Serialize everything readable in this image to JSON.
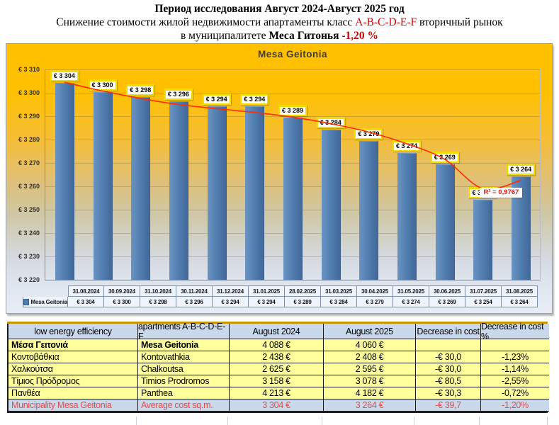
{
  "page_title": {
    "line1": "Период исследования Август 2024-Август 2025 год",
    "line2_prefix": "Снижение стоимости жилой недвижимости апартаменты класс ",
    "line2_class": "A-B-C-D-E-F",
    "line2_suffix": " вторичный рынок",
    "line3_prefix": "в муниципалитете ",
    "line3_municipality": "Меса Гитонья ",
    "line3_change": "-1,20 %"
  },
  "chart_data": {
    "type": "bar",
    "title": "Mesa Geitonia",
    "legend_label": "Mesa Geitonia",
    "categories": [
      "31.08.2024",
      "30.09.2024",
      "31.10.2024",
      "30.11.2024",
      "31.12.2024",
      "31.01.2025",
      "28.02.2025",
      "31.03.2025",
      "30.04.2025",
      "31.05.2025",
      "30.06.2025",
      "31.07.2025",
      "31.08.2025"
    ],
    "values": [
      3304,
      3300,
      3298,
      3296,
      3294,
      3294,
      3289,
      3284,
      3279,
      3274,
      3269,
      3254,
      3264
    ],
    "value_labels": [
      "€ 3 304",
      "€ 3 300",
      "€ 3 298",
      "€ 3 296",
      "€ 3 294",
      "€ 3 294",
      "€ 3 289",
      "€ 3 284",
      "€ 3 279",
      "€ 3 274",
      "€ 3 269",
      "€ 3 254",
      "€ 3 264"
    ],
    "ylim": [
      3220,
      3310
    ],
    "ytick_step": 10,
    "ytick_labels": [
      "€ 3 310",
      "€ 3 300",
      "€ 3 290",
      "€ 3 280",
      "€ 3 270",
      "€ 3 260",
      "€ 3 250",
      "€ 3 240",
      "€ 3 230",
      "€ 3 220"
    ],
    "grid": true,
    "legend_position": "bottom-data-table",
    "trendline": {
      "r2_label": "R² = 0,9767",
      "approx_points": [
        3304.5,
        3300.8,
        3297.6,
        3295.0,
        3293.2,
        3291.6,
        3289.6,
        3286.8,
        3283.2,
        3278.2,
        3271.5,
        3259.0,
        3262.5
      ]
    },
    "colors": {
      "bar": "#4f7cae",
      "trendline": "#ff2b00",
      "bg_top": "#ffc000",
      "bg_bottom": "#e7ecf5",
      "label_border": "#f2dc00"
    }
  },
  "table": {
    "headers": [
      "low energy efficiency",
      "apartments A-B-C-D-E-F",
      "August 2024",
      "August 2025",
      "Decrease in cost",
      "Decrease in cost %"
    ],
    "rows": [
      {
        "cells": [
          "Μέσα Γειτονιά",
          "Mesa Geitonia",
          "4 088 €",
          "4 060 €",
          "",
          ""
        ],
        "style": "bold"
      },
      {
        "cells": [
          "Κοντοβάθκια",
          "Kontovathkia",
          "2 438 €",
          "2 408 €",
          "-€ 30,0",
          "-1,23%"
        ],
        "style": "normal"
      },
      {
        "cells": [
          "Χαλκούτσα",
          "Chalkoutsa",
          "2 625 €",
          "2 595 €",
          "-€ 30,0",
          "-1,14%"
        ],
        "style": "normal"
      },
      {
        "cells": [
          "Τίμιος Πρόδρομος",
          "Timios Prodromos",
          "3 158 €",
          "3 078 €",
          "-€ 80,5",
          "-2,55%"
        ],
        "style": "normal"
      },
      {
        "cells": [
          "Πανθέα",
          "Panthea",
          "4 213 €",
          "4 182 €",
          "-€ 30,3",
          "-0,72%"
        ],
        "style": "normal"
      },
      {
        "cells": [
          "Municipality Mesa Geitonia",
          "Average cost sq.m.",
          "3 304 €",
          "3 264 €",
          "-€ 39,7",
          "-1,20%"
        ],
        "style": "total-red"
      }
    ]
  }
}
